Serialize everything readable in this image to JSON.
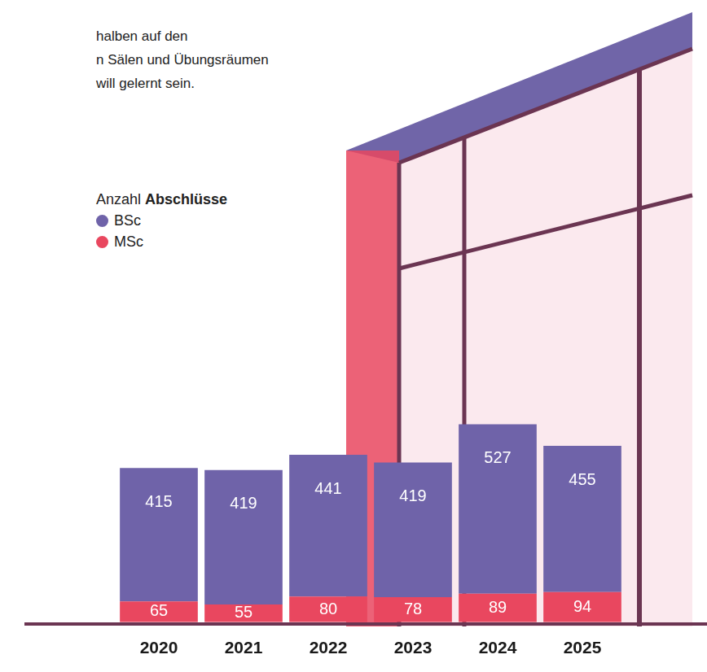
{
  "chart_data": {
    "type": "bar",
    "annotations": [
      "halben auf den",
      "n Sälen und Übungsräumen",
      "will gelernt sein."
    ],
    "legend_title": "Anzahl Abschlüsse",
    "categories": [
      "2020",
      "2021",
      "2022",
      "2023",
      "2024",
      "2025"
    ],
    "series": [
      {
        "name": "BSc",
        "color": "#6f63a9",
        "values": [
          415,
          419,
          441,
          419,
          527,
          455
        ]
      },
      {
        "name": "MSc",
        "color": "#e9475f",
        "values": [
          65,
          55,
          80,
          78,
          89,
          94
        ]
      }
    ],
    "stacked": true,
    "data_labels": true,
    "ylim": [
      0,
      1000
    ],
    "tick_labels": "x",
    "grid": false,
    "legend": "top-left"
  }
}
